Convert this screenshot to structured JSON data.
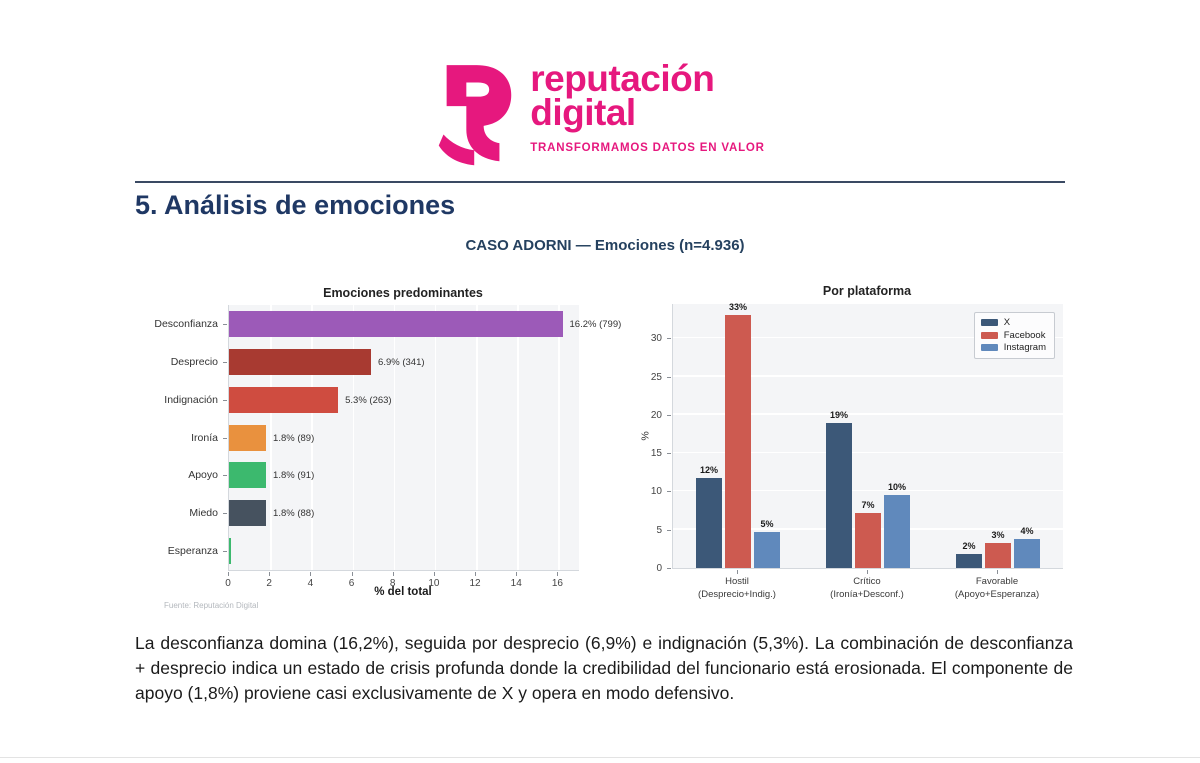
{
  "logo": {
    "brand_line1": "reputación",
    "brand_line2": "digital",
    "tagline": "TRANSFORMAMOS DATOS EN VALOR",
    "brand_color": "#e6187e"
  },
  "section": {
    "heading": "5. Análisis de emociones"
  },
  "figure": {
    "suptitle": "CASO ADORNI — Emociones (n=4.936)",
    "source_note": "Fuente: Reputación Digital"
  },
  "chart_data": [
    {
      "type": "bar",
      "orientation": "horizontal",
      "title": "Emociones predominantes",
      "categories": [
        "Desconfianza",
        "Desprecio",
        "Indignación",
        "Ironía",
        "Apoyo",
        "Miedo",
        "Esperanza"
      ],
      "values": [
        16.2,
        6.9,
        5.3,
        1.8,
        1.8,
        1.8,
        0.12
      ],
      "bar_labels": [
        "16.2% (799)",
        "6.9% (341)",
        "5.3% (263)",
        "1.8% (89)",
        "1.8% (91)",
        "1.8% (88)",
        ""
      ],
      "bar_colors": [
        "#9c5ab8",
        "#a83a31",
        "#cf4c40",
        "#e9913e",
        "#3cb96e",
        "#46525f",
        "#3cb96e"
      ],
      "xlabel": "% del total",
      "xlim": [
        0,
        17
      ],
      "xticks": [
        0,
        2,
        4,
        6,
        8,
        10,
        12,
        14,
        16
      ],
      "grid": true,
      "legend": false
    },
    {
      "type": "bar",
      "orientation": "vertical-grouped",
      "title": "Por plataforma",
      "categories": [
        "Hostil\n(Desprecio+Indig.)",
        "Crítico\n(Ironía+Desconf.)",
        "Favorable\n(Apoyo+Esperanza)"
      ],
      "series": [
        {
          "name": "X",
          "color": "#3c5878",
          "values": [
            11.7,
            18.9,
            1.8
          ],
          "labels": [
            "12%",
            "19%",
            "2%"
          ]
        },
        {
          "name": "Facebook",
          "color": "#cd5a50",
          "values": [
            33,
            7.2,
            3.3
          ],
          "labels": [
            "33%",
            "7%",
            "3%"
          ]
        },
        {
          "name": "Instagram",
          "color": "#6089bc",
          "values": [
            4.7,
            9.6,
            3.8
          ],
          "labels": [
            "5%",
            "10%",
            "4%"
          ]
        }
      ],
      "ylabel": "%",
      "ylim": [
        0,
        34.5
      ],
      "yticks": [
        0,
        5,
        10,
        15,
        20,
        25,
        30
      ],
      "grid": true,
      "legend_position": "upper right"
    }
  ],
  "analysis_paragraph": "La desconfianza domina (16,2%), seguida por desprecio (6,9%) e indignación (5,3%). La combinación de desconfianza + desprecio indica un estado de crisis profunda donde la credibilidad del funcionario está erosionada. El componente de apoyo (1,8%) proviene casi exclusivamente de X y opera en modo defensivo."
}
